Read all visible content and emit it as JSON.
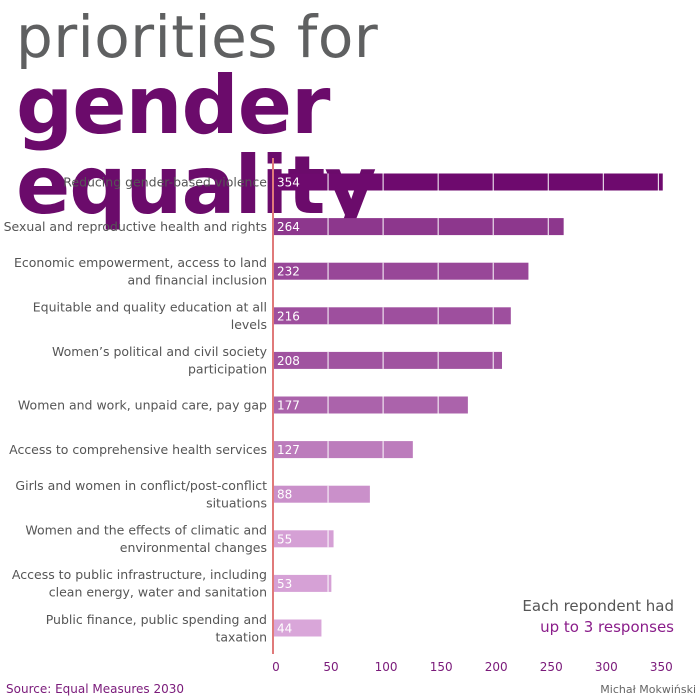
{
  "title_line1": "priorities for",
  "title_line2": "gender equality",
  "note_line1": "Each repondent had",
  "note_line2": "up to 3 responses",
  "source": "Source: Equal Measures 2030",
  "author": "Michał Mokwiński",
  "colors": {
    "title_main": "#6b0b6b",
    "title_top": "#5f6061",
    "axis_line": "#e07a7a",
    "bar_dark": "#6e0a6e",
    "bar_light": "#d9a6d9"
  },
  "chart_data": {
    "type": "bar",
    "orientation": "horizontal",
    "categories": [
      [
        "Reducing gender-based violence"
      ],
      [
        "Sexual and reproductive health and rights"
      ],
      [
        "Economic empowerment, access to land",
        "and financial inclusion"
      ],
      [
        "Equitable and quality education at all",
        "levels"
      ],
      [
        "Women’s political and civil society",
        "participation"
      ],
      [
        "Women and work, unpaid care, pay gap"
      ],
      [
        "Access to comprehensive health services"
      ],
      [
        "Girls and women in conflict/post-conflict",
        "situations"
      ],
      [
        "Women and the effects of climatic and",
        "environmental changes"
      ],
      [
        "Access to public infrastructure, including",
        "clean energy, water and sanitation"
      ],
      [
        "Public finance, public spending and",
        "taxation"
      ]
    ],
    "values": [
      354,
      264,
      232,
      216,
      208,
      177,
      127,
      88,
      55,
      53,
      44
    ],
    "xlim": [
      0,
      370
    ],
    "xticks": [
      0,
      50,
      100,
      150,
      200,
      250,
      300,
      350
    ],
    "grid": false,
    "xlabel": "",
    "ylabel": ""
  }
}
